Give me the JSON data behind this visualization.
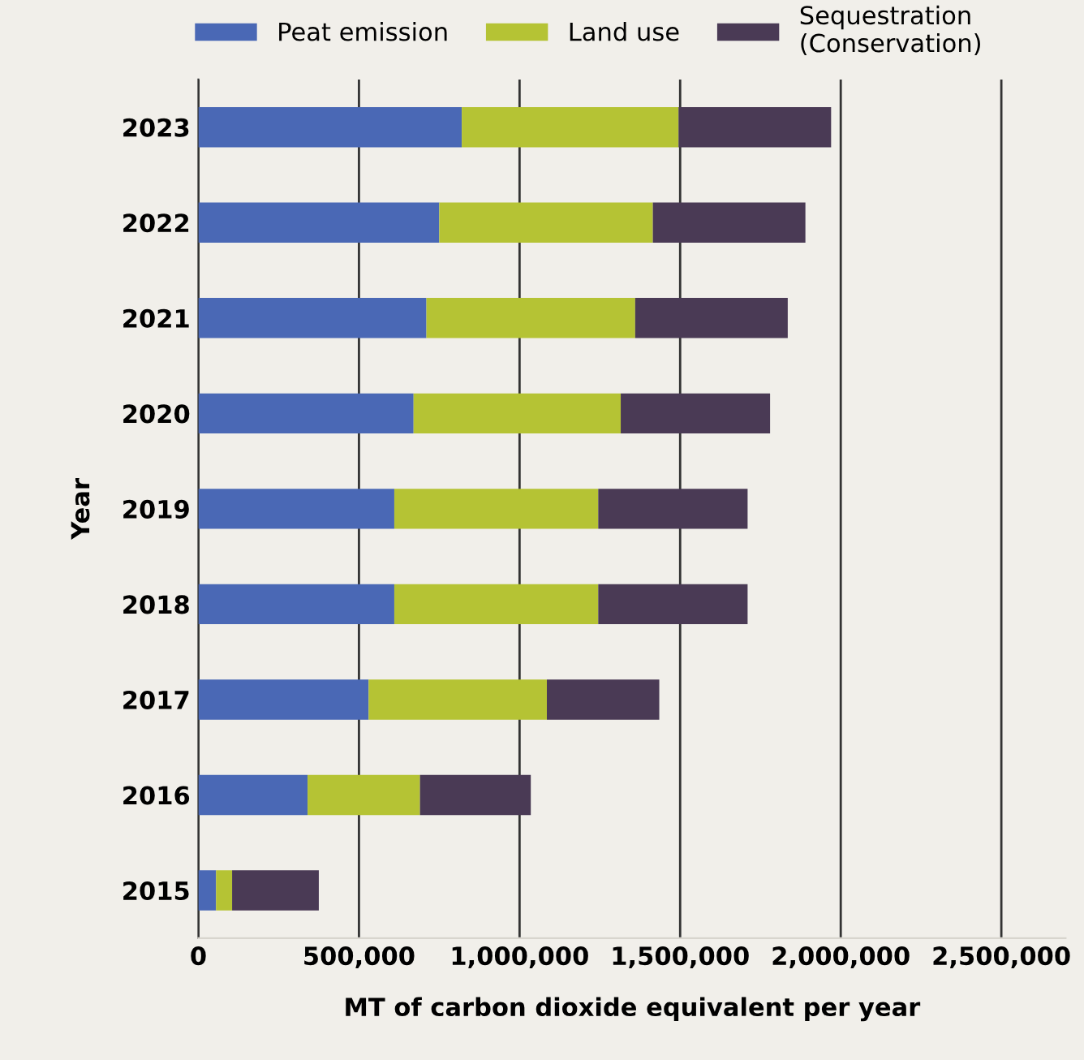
{
  "chart_data": {
    "type": "bar",
    "orientation": "horizontal",
    "stacked": true,
    "xlabel": "MT of carbon dioxide equivalent per year",
    "ylabel": "Year",
    "categories": [
      "2023",
      "2022",
      "2021",
      "2020",
      "2019",
      "2018",
      "2017",
      "2016",
      "2015"
    ],
    "series": [
      {
        "name": "Peat emission",
        "color": "#4a68b5",
        "values": [
          820000,
          750000,
          710000,
          670000,
          610000,
          610000,
          530000,
          340000,
          55000
        ]
      },
      {
        "name": "Land use",
        "color": "#b5c334",
        "values": [
          675000,
          665000,
          650000,
          645000,
          635000,
          635000,
          555000,
          350000,
          50000
        ]
      },
      {
        "name": "Sequestration\n(Conservation)",
        "color": "#4a3a55",
        "values": [
          475000,
          475000,
          475000,
          465000,
          465000,
          465000,
          350000,
          345000,
          270000
        ]
      }
    ],
    "xlim": [
      0,
      2700000
    ],
    "xticks": [
      {
        "value": 0,
        "label": "0"
      },
      {
        "value": 500000,
        "label": "500,000"
      },
      {
        "value": 1000000,
        "label": "1,000,000"
      },
      {
        "value": 1500000,
        "label": "1,500,000"
      },
      {
        "value": 2000000,
        "label": "2,000,000"
      },
      {
        "value": 2500000,
        "label": "2,500,000"
      }
    ],
    "grid": "x",
    "legend": "top"
  }
}
